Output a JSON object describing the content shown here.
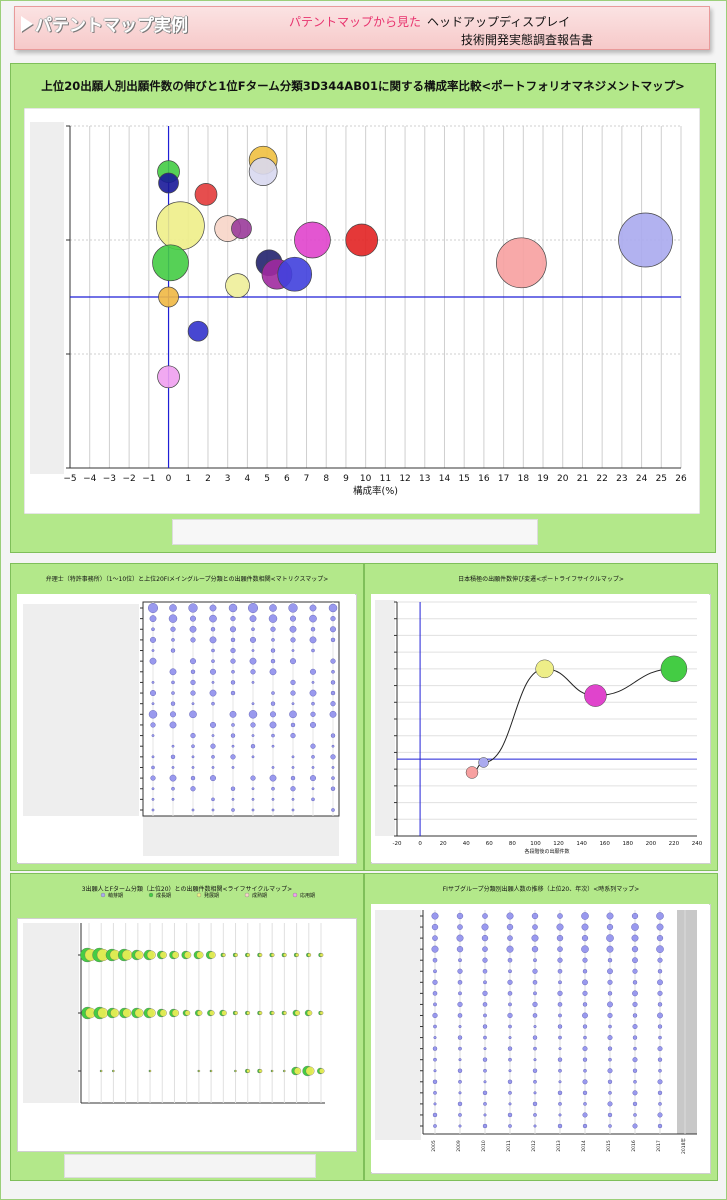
{
  "header": {
    "title": "パテントマップ実例",
    "subtitle_red": "パテントマップから見た",
    "subtitle_line1": "ヘッドアップディスプレイ",
    "subtitle_line2": "技術開発実態調査報告書"
  },
  "colors": {
    "panel_green": "#b3e88a",
    "header_pink": "#f6c9c9",
    "accent_red": "#e8336e",
    "axis_blue": "#1f1fd6"
  },
  "panels": {
    "main_title": "上位20出願人別出願件数の伸びと1位Fターム分類3D344AB01に関する構成率比較<ポートフォリオマネジメントマップ>",
    "matrix_title": "弁理士（特許事務所）（1～10位）と上位20FIメイングループ分類との出願件数相関<マトリクスマップ>",
    "lifecycle_title": "日本積極の出願件数伸び変遷<ポートライフサイクルマップ>",
    "fterm_title": "3出願人とFターム分類（上位20）との出願件数相関<ライフサイクルマップ>",
    "timeseries_title": "FIサブグループ分類別出願人数の推移（上位20、年次）<時系列マップ>"
  },
  "chart_data": [
    {
      "type": "scatter",
      "subtype": "bubble",
      "xlabel": "構成率(%)",
      "xlim": [
        -5,
        26
      ],
      "xticks": [
        -5,
        -4,
        -3,
        -2,
        -1,
        0,
        1,
        2,
        3,
        4,
        5,
        6,
        7,
        8,
        9,
        10,
        11,
        12,
        13,
        14,
        15,
        16,
        17,
        18,
        19,
        20,
        21,
        22,
        23,
        24,
        25,
        26
      ],
      "ylim": [
        -3,
        3
      ],
      "grid": true,
      "reference_lines": {
        "x": 0,
        "y": 0
      },
      "points": [
        {
          "x": 0.0,
          "y": 2.2,
          "r": 11,
          "color": "#44cc44"
        },
        {
          "x": 0.0,
          "y": 2.0,
          "r": 10,
          "color": "#1a1a99"
        },
        {
          "x": 1.9,
          "y": 1.8,
          "r": 11,
          "color": "#e33b3b"
        },
        {
          "x": 4.8,
          "y": 2.4,
          "r": 14,
          "color": "#f0c040"
        },
        {
          "x": 4.8,
          "y": 2.2,
          "r": 14,
          "color": "#d8d8f0"
        },
        {
          "x": 0.6,
          "y": 1.25,
          "r": 24,
          "color": "#eeee88"
        },
        {
          "x": 3.0,
          "y": 1.2,
          "r": 13,
          "color": "#f7d5c8"
        },
        {
          "x": 3.7,
          "y": 1.2,
          "r": 10,
          "color": "#9a3b9a"
        },
        {
          "x": 7.3,
          "y": 1.0,
          "r": 18,
          "color": "#e044cc"
        },
        {
          "x": 9.8,
          "y": 1.0,
          "r": 16,
          "color": "#e22222"
        },
        {
          "x": 24.2,
          "y": 1.0,
          "r": 27,
          "color": "#aaaaee"
        },
        {
          "x": 0.1,
          "y": 0.6,
          "r": 18,
          "color": "#44cc44"
        },
        {
          "x": 5.1,
          "y": 0.6,
          "r": 13,
          "color": "#22226e"
        },
        {
          "x": 5.5,
          "y": 0.4,
          "r": 15,
          "color": "#a02aa0"
        },
        {
          "x": 6.4,
          "y": 0.4,
          "r": 17,
          "color": "#4040dd"
        },
        {
          "x": 3.5,
          "y": 0.2,
          "r": 12,
          "color": "#eeee99"
        },
        {
          "x": 17.9,
          "y": 0.6,
          "r": 25,
          "color": "#f7a0a0"
        },
        {
          "x": 0.0,
          "y": 0.0,
          "r": 10,
          "color": "#f0b844"
        },
        {
          "x": 1.5,
          "y": -0.6,
          "r": 10,
          "color": "#3333cc"
        },
        {
          "x": 0.0,
          "y": -1.4,
          "r": 11,
          "color": "#f0a0f0"
        }
      ]
    },
    {
      "type": "line",
      "subtype": "bubble-lifecycle",
      "xlabel": "各段階後の出願件数",
      "xlim": [
        -20,
        240
      ],
      "xticks": [
        -20,
        0,
        20,
        40,
        60,
        80,
        100,
        120,
        140,
        160,
        180,
        200,
        220,
        240
      ],
      "points": [
        {
          "x": 45,
          "y": 19,
          "r": 6,
          "color": "#f7a0a0"
        },
        {
          "x": 55,
          "y": 22,
          "r": 5,
          "color": "#aaaaee"
        },
        {
          "x": 108,
          "y": 50,
          "r": 9,
          "color": "#eeee88"
        },
        {
          "x": 152,
          "y": 42,
          "r": 11,
          "color": "#e044cc"
        },
        {
          "x": 220,
          "y": 50,
          "r": 13,
          "color": "#44cc44"
        }
      ]
    },
    {
      "type": "scatter",
      "subtype": "fterm-lifecycle",
      "legend": [
        "萌芽期",
        "成長期",
        "発展期",
        "成熟期",
        "応用期"
      ],
      "legend_colors": [
        "#aaaaee",
        "#44cc44",
        "#eeee88",
        "#f7d5c8",
        "#f0a0f0"
      ]
    },
    {
      "type": "scatter",
      "subtype": "timeseries",
      "x": [
        "2005",
        "2009",
        "2010",
        "2011",
        "2012",
        "2013",
        "2014",
        "2015",
        "2016",
        "2017",
        "2018年"
      ]
    }
  ]
}
